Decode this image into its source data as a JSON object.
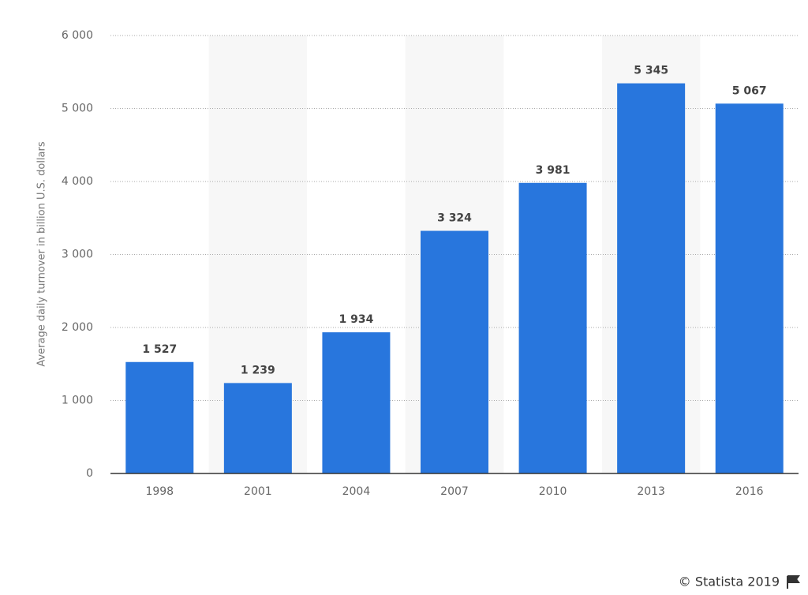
{
  "chart_data": {
    "type": "bar",
    "y_label": "Average daily turnover in billion U.S. dollars",
    "categories": [
      "1998",
      "2001",
      "2004",
      "2007",
      "2010",
      "2013",
      "2016"
    ],
    "values": [
      1527,
      1239,
      1934,
      3324,
      3981,
      5345,
      5067
    ],
    "value_labels": [
      "1 527",
      "1 239",
      "1 934",
      "3 324",
      "3 981",
      "5 345",
      "5 067"
    ],
    "color": "#2876dd",
    "ylim": [
      0,
      6000
    ],
    "yticks": [
      0,
      {
        "value": 1000,
        "label": "1 000"
      },
      {
        "value": 2000,
        "label": "2 000"
      },
      {
        "value": 3000,
        "label": "3 000"
      },
      {
        "value": 4000,
        "label": "4 000"
      },
      {
        "value": 5000,
        "label": "5 000"
      },
      {
        "value": 6000,
        "label": "6 000"
      }
    ],
    "grid": true
  },
  "credit": "© Statista 2019"
}
